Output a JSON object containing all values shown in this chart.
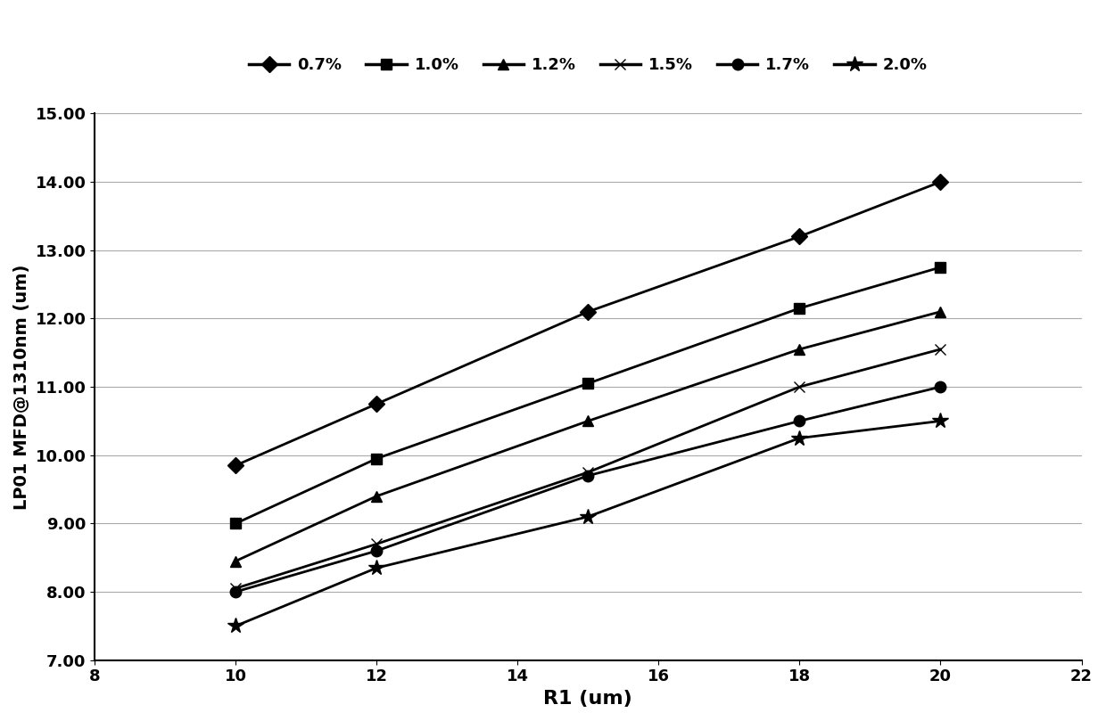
{
  "series": [
    {
      "label": "0.7%",
      "marker": "D",
      "x": [
        10,
        12,
        15,
        18,
        20
      ],
      "y": [
        9.85,
        10.75,
        12.1,
        13.2,
        14.0
      ]
    },
    {
      "label": "1.0%",
      "marker": "s",
      "x": [
        10,
        12,
        15,
        18,
        20
      ],
      "y": [
        9.0,
        9.95,
        11.05,
        12.15,
        12.75
      ]
    },
    {
      "label": "1.2%",
      "marker": "^",
      "x": [
        10,
        12,
        15,
        18,
        20
      ],
      "y": [
        8.45,
        9.4,
        10.5,
        11.55,
        12.1
      ]
    },
    {
      "label": "1.5%",
      "marker": "x",
      "x": [
        10,
        12,
        15,
        18,
        20
      ],
      "y": [
        8.05,
        8.7,
        9.75,
        11.0,
        11.55
      ]
    },
    {
      "label": "1.7%",
      "marker": "o",
      "x": [
        10,
        12,
        15,
        18,
        20
      ],
      "y": [
        8.0,
        8.6,
        9.7,
        10.5,
        11.0
      ]
    },
    {
      "label": "2.0%",
      "marker": "*",
      "x": [
        10,
        12,
        15,
        18,
        20
      ],
      "y": [
        7.5,
        8.35,
        9.1,
        10.25,
        10.5
      ]
    }
  ],
  "xlabel": "R1 (um)",
  "ylabel": "LP01 MFD@1310nm (um)",
  "xlim": [
    8,
    22
  ],
  "ylim": [
    7.0,
    15.0
  ],
  "yticks": [
    7.0,
    8.0,
    9.0,
    10.0,
    11.0,
    12.0,
    13.0,
    14.0,
    15.0
  ],
  "xticks": [
    8,
    10,
    12,
    14,
    16,
    18,
    20,
    22
  ],
  "line_color": "#000000",
  "marker_color": "#000000",
  "marker_size": 9,
  "linewidth": 2.0,
  "xlabel_fontsize": 16,
  "ylabel_fontsize": 14,
  "tick_fontsize": 13,
  "legend_fontsize": 13,
  "background_color": "#ffffff",
  "grid_color": "#aaaaaa"
}
